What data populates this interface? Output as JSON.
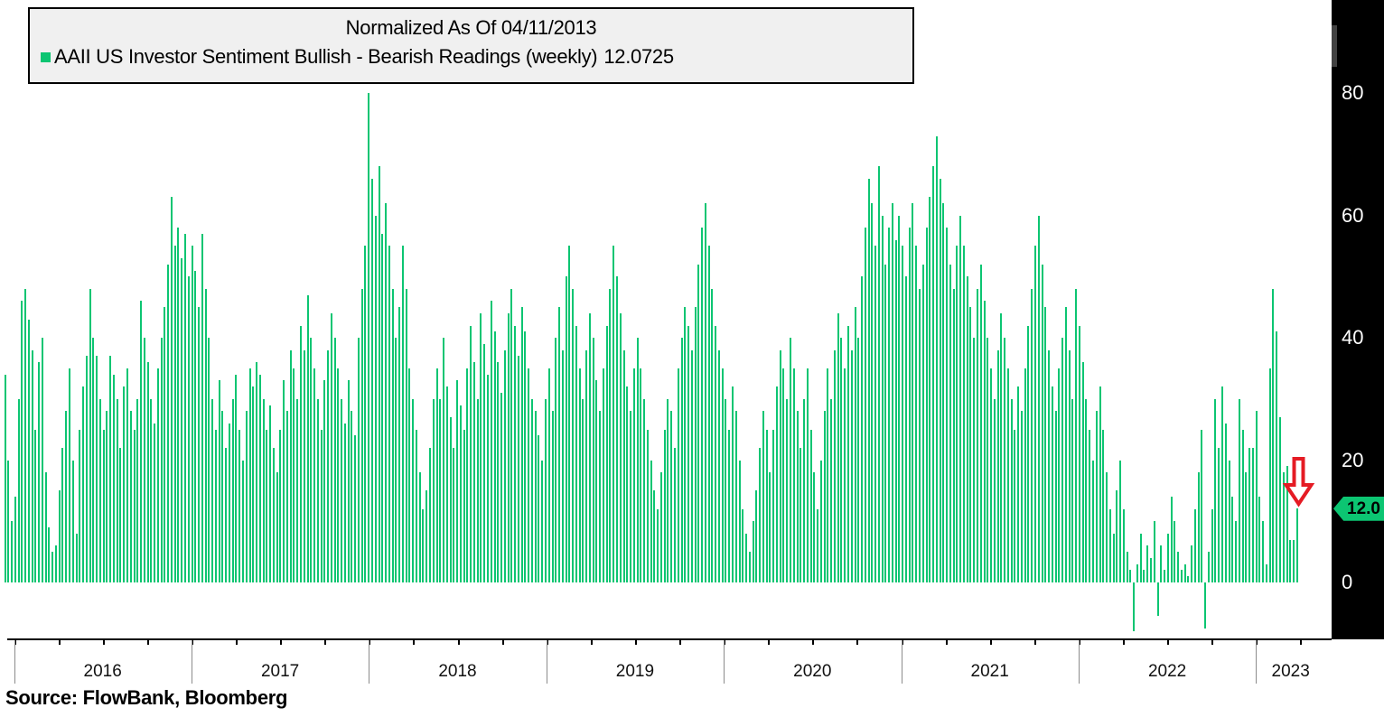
{
  "legend": {
    "title": "Normalized As Of 04/11/2013",
    "series_label": "AAII US Investor Sentiment Bullish - Bearish Readings (weekly)",
    "series_value": "12.0725"
  },
  "source": "Source: FlowBank, Bloomberg",
  "y_axis": {
    "ticks": [
      0,
      20,
      40,
      60,
      80
    ],
    "last_price_label": "12.0",
    "last_price_value": 12.0725
  },
  "x_axis": {
    "years": [
      "2016",
      "2017",
      "2018",
      "2019",
      "2020",
      "2021",
      "2022",
      "2023"
    ]
  },
  "colors": {
    "bar_green": "#0cc572",
    "tag_green": "#0cc572",
    "arrow_red": "#e51b24",
    "panel_black": "#000000",
    "legend_bg": "#f0f0f0",
    "divider_gray": "#8c8c8c"
  },
  "annotations": {
    "down_arrow_target": "last weekly bar (12.0725)"
  },
  "chart_data": {
    "type": "bar",
    "title": "Normalized As Of 04/11/2013",
    "series_name": "AAII US Investor Sentiment Bullish - Bearish Readings (weekly)",
    "frequency": "weekly",
    "x_year_labels": [
      "2016",
      "2017",
      "2018",
      "2019",
      "2020",
      "2021",
      "2022",
      "2023"
    ],
    "weeks_before_first_year_divider": 3,
    "y_ticks": [
      0,
      20,
      40,
      60,
      80
    ],
    "ylim": [
      -12,
      88
    ],
    "grid": false,
    "legend_position": "top-left",
    "last_value": 12.0725,
    "values": [
      34,
      20,
      10,
      14,
      30,
      46,
      48,
      43,
      38,
      25,
      36,
      40,
      18,
      9,
      5,
      6,
      15,
      22,
      28,
      35,
      20,
      8,
      25,
      32,
      37,
      48,
      40,
      37,
      30,
      25,
      28,
      37,
      34,
      30,
      22,
      32,
      35,
      28,
      25,
      30,
      46,
      40,
      36,
      30,
      26,
      35,
      40,
      45,
      52,
      63,
      55,
      58,
      53,
      57,
      50,
      55,
      51,
      45,
      57,
      48,
      40,
      30,
      25,
      33,
      28,
      22,
      26,
      30,
      34,
      25,
      20,
      28,
      35,
      32,
      36,
      34,
      30,
      25,
      29,
      22,
      18,
      25,
      33,
      28,
      38,
      35,
      30,
      42,
      38,
      47,
      40,
      35,
      30,
      25,
      33,
      38,
      44,
      40,
      35,
      30,
      26,
      33,
      28,
      24,
      40,
      48,
      55,
      80,
      66,
      60,
      68,
      57,
      62,
      55,
      48,
      40,
      45,
      55,
      48,
      35,
      30,
      25,
      18,
      12,
      15,
      22,
      30,
      35,
      30,
      40,
      32,
      27,
      22,
      33,
      29,
      25,
      35,
      42,
      36,
      30,
      44,
      39,
      34,
      46,
      41,
      36,
      31,
      38,
      44,
      48,
      42,
      37,
      45,
      41,
      35,
      30,
      28,
      24,
      20,
      30,
      35,
      28,
      40,
      45,
      38,
      50,
      55,
      48,
      42,
      35,
      30,
      38,
      44,
      40,
      33,
      28,
      35,
      42,
      48,
      55,
      50,
      44,
      38,
      32,
      28,
      35,
      40,
      35,
      30,
      25,
      20,
      15,
      12,
      18,
      25,
      30,
      28,
      22,
      35,
      40,
      45,
      42,
      38,
      45,
      52,
      58,
      62,
      55,
      48,
      42,
      38,
      35,
      30,
      25,
      32,
      28,
      20,
      12,
      8,
      5,
      10,
      15,
      22,
      28,
      25,
      18,
      25,
      32,
      38,
      35,
      30,
      40,
      35,
      28,
      22,
      30,
      35,
      25,
      18,
      12,
      20,
      28,
      35,
      30,
      38,
      44,
      40,
      35,
      42,
      38,
      45,
      40,
      50,
      58,
      66,
      62,
      55,
      68,
      60,
      52,
      58,
      62,
      56,
      60,
      55,
      50,
      58,
      62,
      55,
      48,
      52,
      58,
      63,
      68,
      73,
      66,
      62,
      58,
      52,
      48,
      55,
      60,
      55,
      50,
      45,
      40,
      48,
      52,
      46,
      40,
      35,
      30,
      38,
      44,
      40,
      35,
      30,
      25,
      32,
      28,
      35,
      42,
      48,
      55,
      60,
      52,
      45,
      38,
      32,
      28,
      35,
      40,
      45,
      38,
      30,
      48,
      42,
      36,
      30,
      25,
      20,
      28,
      32,
      25,
      18,
      12,
      8,
      15,
      20,
      12,
      5,
      2,
      -8,
      3,
      8,
      2,
      6,
      4,
      10,
      -5.5,
      6,
      2,
      8,
      14,
      10,
      5,
      2,
      3,
      1,
      6,
      12,
      18,
      25,
      -7.5,
      5,
      12,
      30,
      22,
      32,
      26,
      20,
      14,
      10,
      30,
      25,
      18,
      22,
      22,
      28,
      14,
      10,
      3,
      35,
      48,
      41,
      27,
      18,
      19,
      7,
      7,
      12.0725
    ]
  }
}
